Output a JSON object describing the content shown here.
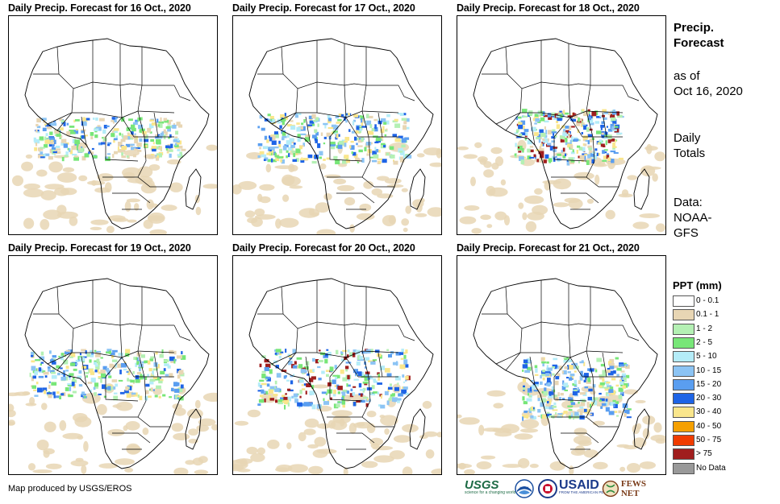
{
  "panels": [
    {
      "title": "Daily Precip. Forecast for 16 Oct., 2020"
    },
    {
      "title": "Daily Precip. Forecast for 17 Oct., 2020"
    },
    {
      "title": "Daily Precip. Forecast for 18 Oct., 2020"
    },
    {
      "title": "Daily Precip. Forecast for 19 Oct., 2020"
    },
    {
      "title": "Daily Precip. Forecast for 20 Oct., 2020"
    },
    {
      "title": "Daily Precip. Forecast for 21 Oct., 2020"
    }
  ],
  "sidebar": {
    "title_line1": "Precip.",
    "title_line2": "Forecast",
    "asof_line1": "as of",
    "asof_line2": "Oct 16, 2020",
    "totals_line1": "Daily",
    "totals_line2": "Totals",
    "data_line1": "Data:",
    "data_line2": "NOAA-",
    "data_line3": "GFS"
  },
  "legend": {
    "title": "PPT (mm)",
    "items": [
      {
        "label": "0 - 0.1",
        "color": "#ffffff"
      },
      {
        "label": "0.1 - 1",
        "color": "#e8d6b4"
      },
      {
        "label": "1 - 2",
        "color": "#b4f0b4"
      },
      {
        "label": "2 - 5",
        "color": "#78e678"
      },
      {
        "label": "5 - 10",
        "color": "#b4ecf8"
      },
      {
        "label": "10 - 15",
        "color": "#8cc4f4"
      },
      {
        "label": "15 - 20",
        "color": "#5a9ef0"
      },
      {
        "label": "20 - 30",
        "color": "#1e64e6"
      },
      {
        "label": "30 - 40",
        "color": "#fae68c"
      },
      {
        "label": "40 - 50",
        "color": "#f5a000"
      },
      {
        "label": "50 - 75",
        "color": "#f03c00"
      },
      {
        "label": "> 75",
        "color": "#a01e1e"
      },
      {
        "label": "No Data",
        "color": "#999999"
      }
    ]
  },
  "footer": {
    "credit": "Map produced by USGS/EROS",
    "logo_usgs": "USGS",
    "logo_usgs_tagline": "science for a changing world",
    "logo_noaa": "NOAA",
    "logo_usaid": "USAID",
    "logo_usaid_tagline": "FROM THE AMERICAN PEOPLE",
    "logo_fews": "FEWS NET"
  }
}
